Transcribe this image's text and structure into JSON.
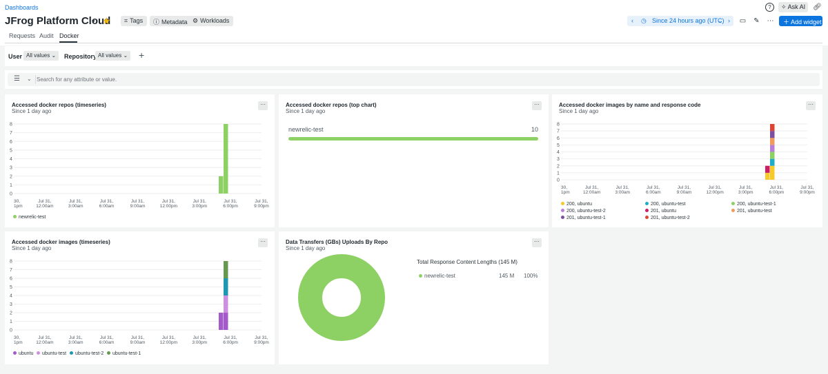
{
  "header": {
    "breadcrumb": "Dashboards",
    "title": "JFrog Platform Cloud",
    "pills": [
      "Tags",
      "Metadata",
      "Workloads"
    ],
    "time_range": "Since 24 hours ago (UTC)",
    "ask_ai": "Ask AI",
    "add_widget": "Add widget",
    "icons": [
      "help-icon",
      "ask-ai-icon",
      "link-icon",
      "tv-mode-icon",
      "edit-icon",
      "more-icon"
    ]
  },
  "tabs": [
    "Requests",
    "Audit",
    "Docker"
  ],
  "active_tab": "Docker",
  "filters": {
    "user_label": "User",
    "user_value": "All values",
    "repo_label": "Repository",
    "repo_value": "All values"
  },
  "search": {
    "placeholder": "Search for any attribute or value."
  },
  "colors": {
    "green": "#8dd164",
    "ubuntu": "#a55ac9",
    "ubuntu_test": "#cd8fe0",
    "ubuntu_test_2": "#1e97b0",
    "ubuntu_test_1": "#66994f",
    "resp_200_ubuntu": "#f7c92b",
    "resp_200_ubuntu_test": "#1dadcb",
    "resp_200_ubuntu_test_1": "#8dd164",
    "resp_200_ubuntu_test_2": "#b77ed7",
    "resp_201_ubuntu": "#cd1d63",
    "resp_201_ubuntu_test": "#f09a5c",
    "resp_201_ubuntu_test_1": "#7c4fa3",
    "resp_201_ubuntu_test_2": "#dc4535",
    "accent": "#0c74df"
  },
  "widgets": {
    "repos_timeseries": {
      "title": "Accessed docker repos (timeseries)",
      "subtitle": "Since 1 day ago",
      "menu": "···"
    },
    "repos_top": {
      "title": "Accessed docker repos (top chart)",
      "subtitle": "Since 1 day ago",
      "menu": "···",
      "rows": [
        {
          "name": "newrelic-test",
          "value": "10",
          "fraction": 1.0
        }
      ]
    },
    "images_by_code": {
      "title": "Accessed docker images by name and response code",
      "subtitle": "Since 1 day ago",
      "menu": "···"
    },
    "images_timeseries": {
      "title": "Accessed docker images (timeseries)",
      "subtitle": "Since 1 day ago",
      "menu": "···"
    },
    "data_transfers": {
      "title": "Data Transfers (GBs) Uploads By Repo",
      "subtitle": "Since 1 day ago",
      "menu": "···",
      "legend_title": "Total Response Content Lengths (145 M)",
      "rows": [
        {
          "name": "newrelic-test",
          "value": "145 M",
          "percent": "100%"
        }
      ]
    }
  },
  "chart_data": [
    {
      "type": "bar",
      "id": "repos_timeseries",
      "stacked": true,
      "ylim": [
        0,
        8
      ],
      "yticks": [
        "0",
        "1",
        "2",
        "3",
        "4",
        "5",
        "6",
        "7",
        "8"
      ],
      "xticks": [
        [
          "30,",
          "1pm"
        ],
        [
          "Jul 31,",
          "12:00am"
        ],
        [
          "Jul 31,",
          "3:00am"
        ],
        [
          "Jul 31,",
          "6:00am"
        ],
        [
          "Jul 31,",
          "9:00am"
        ],
        [
          "Jul 31,",
          "12:00pm"
        ],
        [
          "Jul 31,",
          "3:00pm"
        ],
        [
          "Jul 31,",
          "6:00pm"
        ],
        [
          "Jul 31,",
          "9:00pm"
        ]
      ],
      "bars": [
        {
          "slot": 0,
          "stack": [
            {
              "series": "newrelic-test",
              "value": 2
            }
          ]
        },
        {
          "slot": 1,
          "stack": [
            {
              "series": "newrelic-test",
              "value": 8
            }
          ]
        }
      ],
      "series": [
        {
          "name": "newrelic-test",
          "color": "#8dd164"
        }
      ]
    },
    {
      "type": "bar",
      "id": "repos_top",
      "categories": [
        "newrelic-test"
      ],
      "values": [
        10
      ]
    },
    {
      "type": "bar",
      "id": "images_by_code",
      "stacked": true,
      "ylim": [
        0,
        8
      ],
      "yticks": [
        "0",
        "1",
        "2",
        "3",
        "4",
        "5",
        "6",
        "7",
        "8"
      ],
      "xticks": [
        [
          "30,",
          "1pm"
        ],
        [
          "Jul 31,",
          "12:00am"
        ],
        [
          "Jul 31,",
          "3:00am"
        ],
        [
          "Jul 31,",
          "6:00am"
        ],
        [
          "Jul 31,",
          "9:00am"
        ],
        [
          "Jul 31,",
          "12:00pm"
        ],
        [
          "Jul 31,",
          "3:00pm"
        ],
        [
          "Jul 31,",
          "6:00pm"
        ],
        [
          "Jul 31,",
          "9:00pm"
        ]
      ],
      "bars": [
        {
          "slot": 0,
          "stack": [
            {
              "series": "200, ubuntu",
              "value": 1
            },
            {
              "series": "201, ubuntu",
              "value": 1
            }
          ]
        },
        {
          "slot": 1,
          "stack": [
            {
              "series": "200, ubuntu",
              "value": 2
            },
            {
              "series": "200, ubuntu-test",
              "value": 1
            },
            {
              "series": "200, ubuntu-test-1",
              "value": 1
            },
            {
              "series": "200, ubuntu-test-2",
              "value": 1
            },
            {
              "series": "201, ubuntu-test",
              "value": 1
            },
            {
              "series": "201, ubuntu-test-1",
              "value": 1
            },
            {
              "series": "201, ubuntu-test-2",
              "value": 1
            }
          ]
        }
      ],
      "series": [
        {
          "name": "200, ubuntu",
          "color": "#f7c92b"
        },
        {
          "name": "200, ubuntu-test",
          "color": "#1dadcb"
        },
        {
          "name": "200, ubuntu-test-1",
          "color": "#8dd164"
        },
        {
          "name": "200, ubuntu-test-2",
          "color": "#b77ed7"
        },
        {
          "name": "201, ubuntu",
          "color": "#cd1d63"
        },
        {
          "name": "201, ubuntu-test",
          "color": "#f09a5c"
        },
        {
          "name": "201, ubuntu-test-1",
          "color": "#7c4fa3"
        },
        {
          "name": "201, ubuntu-test-2",
          "color": "#dc4535"
        }
      ]
    },
    {
      "type": "bar",
      "id": "images_timeseries",
      "stacked": true,
      "ylim": [
        0,
        8
      ],
      "yticks": [
        "0",
        "1",
        "2",
        "3",
        "4",
        "5",
        "6",
        "7",
        "8"
      ],
      "xticks": [
        [
          "30,",
          "1pm"
        ],
        [
          "Jul 31,",
          "12:00am"
        ],
        [
          "Jul 31,",
          "3:00am"
        ],
        [
          "Jul 31,",
          "6:00am"
        ],
        [
          "Jul 31,",
          "9:00am"
        ],
        [
          "Jul 31,",
          "12:00pm"
        ],
        [
          "Jul 31,",
          "3:00pm"
        ],
        [
          "Jul 31,",
          "6:00pm"
        ],
        [
          "Jul 31,",
          "9:00pm"
        ]
      ],
      "bars": [
        {
          "slot": 0,
          "stack": [
            {
              "series": "ubuntu",
              "value": 2
            }
          ]
        },
        {
          "slot": 1,
          "stack": [
            {
              "series": "ubuntu",
              "value": 2
            },
            {
              "series": "ubuntu-test",
              "value": 2
            },
            {
              "series": "ubuntu-test-2",
              "value": 2
            },
            {
              "series": "ubuntu-test-1",
              "value": 2
            }
          ]
        }
      ],
      "series": [
        {
          "name": "ubuntu",
          "color": "#a55ac9"
        },
        {
          "name": "ubuntu-test",
          "color": "#cd8fe0"
        },
        {
          "name": "ubuntu-test-2",
          "color": "#1e97b0"
        },
        {
          "name": "ubuntu-test-1",
          "color": "#66994f"
        }
      ]
    },
    {
      "type": "pie",
      "id": "data_transfers",
      "donut": true,
      "slices": [
        {
          "name": "newrelic-test",
          "value": 145,
          "unit": "M",
          "percent": 100,
          "color": "#8dd164"
        }
      ]
    }
  ]
}
